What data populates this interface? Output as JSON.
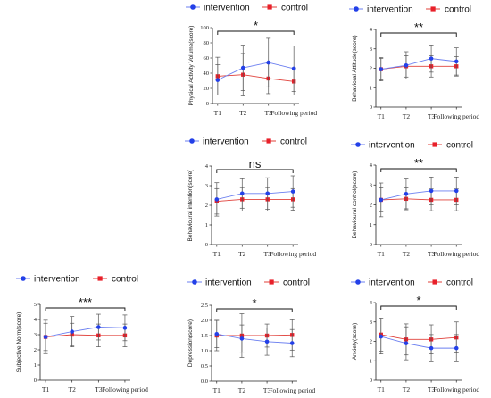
{
  "legend": {
    "intervention": "intervention",
    "control": "control"
  },
  "colors": {
    "intervention": "#6b7ff0",
    "control": "#e0403a",
    "intervention_marker": "#2340e8",
    "control_marker": "#e8202a",
    "error": "#555555"
  },
  "chart_data": [
    {
      "type": "line",
      "ylabel": "Physical Activity Volume(score)",
      "categories": [
        "T1",
        "T2",
        "T3",
        "Following period"
      ],
      "ylim": [
        0,
        100
      ],
      "yticks": [
        0,
        20,
        40,
        60,
        80,
        100
      ],
      "significance": "*",
      "series": [
        {
          "name": "intervention",
          "values": [
            31,
            47,
            54,
            46
          ],
          "error": [
            20,
            30,
            32,
            30
          ]
        },
        {
          "name": "control",
          "values": [
            36,
            38,
            33,
            29
          ],
          "error": [
            25,
            28,
            20,
            18
          ]
        }
      ]
    },
    {
      "type": "line",
      "ylabel": "Behavioral Attitude(score)",
      "categories": [
        "T1",
        "T2",
        "T3",
        "Following period"
      ],
      "ylim": [
        0,
        4
      ],
      "yticks": [
        0,
        1,
        2,
        3,
        4
      ],
      "significance": "**",
      "series": [
        {
          "name": "intervention",
          "values": [
            1.95,
            2.15,
            2.5,
            2.35
          ],
          "error": [
            0.6,
            0.7,
            0.7,
            0.7
          ]
        },
        {
          "name": "control",
          "values": [
            1.95,
            2.1,
            2.1,
            2.1
          ],
          "error": [
            0.55,
            0.55,
            0.55,
            0.5
          ]
        }
      ]
    },
    {
      "type": "line",
      "ylabel": "Behavioural intention(score)",
      "categories": [
        "T1",
        "T2",
        "T3",
        "Following period"
      ],
      "ylim": [
        0,
        4
      ],
      "yticks": [
        0,
        1,
        2,
        3,
        4
      ],
      "significance": "ns",
      "series": [
        {
          "name": "intervention",
          "values": [
            2.3,
            2.6,
            2.6,
            2.7
          ],
          "error": [
            0.85,
            0.75,
            0.8,
            0.8
          ]
        },
        {
          "name": "control",
          "values": [
            2.2,
            2.3,
            2.3,
            2.3
          ],
          "error": [
            0.65,
            0.6,
            0.6,
            0.55
          ]
        }
      ]
    },
    {
      "type": "line",
      "ylabel": "Behavioural control(score)",
      "categories": [
        "T1",
        "T2",
        "T3",
        "Following period"
      ],
      "ylim": [
        0,
        4
      ],
      "yticks": [
        0,
        1,
        2,
        3,
        4
      ],
      "significance": "**",
      "series": [
        {
          "name": "intervention",
          "values": [
            2.25,
            2.55,
            2.7,
            2.7
          ],
          "error": [
            0.85,
            0.75,
            0.7,
            0.7
          ]
        },
        {
          "name": "control",
          "values": [
            2.25,
            2.3,
            2.25,
            2.25
          ],
          "error": [
            0.6,
            0.55,
            0.55,
            0.55
          ]
        }
      ]
    },
    {
      "type": "line",
      "ylabel": "Subjective Norm(score)",
      "categories": [
        "T1",
        "T2",
        "T3",
        "Following period"
      ],
      "ylim": [
        0,
        5
      ],
      "yticks": [
        0,
        1,
        2,
        3,
        4,
        5
      ],
      "significance": "***",
      "series": [
        {
          "name": "intervention",
          "values": [
            2.85,
            3.2,
            3.5,
            3.45
          ],
          "error": [
            1.1,
            1.0,
            0.85,
            0.85
          ]
        },
        {
          "name": "control",
          "values": [
            2.85,
            3.0,
            2.95,
            2.95
          ],
          "error": [
            0.9,
            0.75,
            0.75,
            0.75
          ]
        }
      ]
    },
    {
      "type": "line",
      "ylabel": "Depression(score)",
      "categories": [
        "T1",
        "T2",
        "T3",
        "Following period"
      ],
      "ylim": [
        0,
        2.5
      ],
      "yticks": [
        0.0,
        0.5,
        1.0,
        1.5,
        2.0,
        2.5
      ],
      "significance": "*",
      "series": [
        {
          "name": "intervention",
          "values": [
            1.55,
            1.4,
            1.3,
            1.25
          ],
          "error": [
            0.45,
            0.45,
            0.45,
            0.45
          ]
        },
        {
          "name": "control",
          "values": [
            1.5,
            1.5,
            1.5,
            1.52
          ],
          "error": [
            0.5,
            0.72,
            0.38,
            0.5
          ]
        }
      ]
    },
    {
      "type": "line",
      "ylabel": "Anxiety(score)",
      "categories": [
        "T1",
        "T2",
        "T3",
        "Following period"
      ],
      "ylim": [
        0,
        4
      ],
      "yticks": [
        0,
        1,
        2,
        3,
        4
      ],
      "significance": "*",
      "series": [
        {
          "name": "intervention",
          "values": [
            2.25,
            1.9,
            1.65,
            1.65
          ],
          "error": [
            0.9,
            0.85,
            0.7,
            0.7
          ]
        },
        {
          "name": "control",
          "values": [
            2.35,
            2.1,
            2.1,
            2.2
          ],
          "error": [
            0.85,
            0.8,
            0.75,
            0.8
          ]
        }
      ]
    }
  ]
}
